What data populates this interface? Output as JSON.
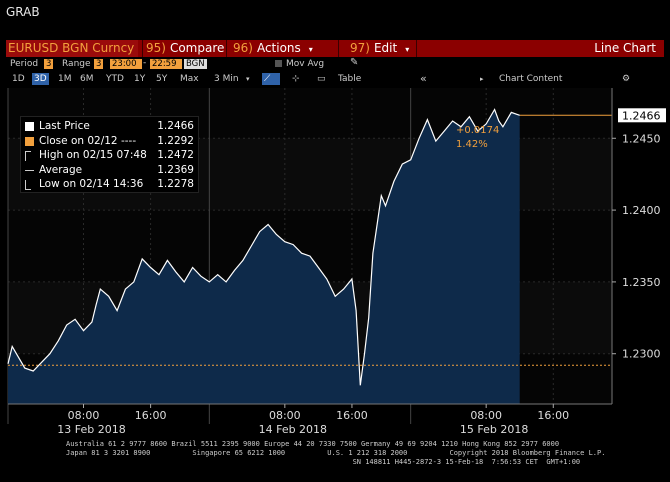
{
  "window_title": "GRAB",
  "toolbar": {
    "ticker": "EURUSD BGN Curncy",
    "compare": {
      "num": "95)",
      "label": "Compare"
    },
    "actions": {
      "num": "96)",
      "label": "Actions"
    },
    "edit": {
      "num": "97)",
      "label": "Edit"
    },
    "title": "Line Chart"
  },
  "params": {
    "period_label": "Period",
    "period_value": "3",
    "range_label": "Range",
    "range_value": "3",
    "start_time": "23:00",
    "end_time": "22:59",
    "source": "BGN",
    "mov_avg_label": "Mov Avg"
  },
  "tabs": [
    "1D",
    "3D",
    "1M",
    "6M",
    "YTD",
    "1Y",
    "5Y",
    "Max"
  ],
  "selected_tab": "3D",
  "interval": "3 Min",
  "table_label": "Table",
  "chart_content_label": "Chart Content",
  "legend": [
    {
      "label": "Last Price",
      "value": "1.2466",
      "mark": "white-square"
    },
    {
      "label": "Close on 02/12 ----",
      "value": "1.2292",
      "mark": "orange-square"
    },
    {
      "label": "High on 02/15 07:48",
      "value": "1.2472",
      "mark": "high-line"
    },
    {
      "label": "Average",
      "value": "1.2369",
      "mark": "average-line"
    },
    {
      "label": "Low on 02/14 14:36",
      "value": "1.2278",
      "mark": "low-line"
    }
  ],
  "annotation": {
    "change": "+0.0174",
    "pct": "1.42%"
  },
  "last_price_label": "1.2466",
  "footer_lines": [
    "Australia 61 2 9777 8600 Brazil 5511 2395 9000 Europe 44 20 7330 7500 Germany 49 69 9204 1210 Hong Kong 852 2977 6000",
    "Japan 81 3 3201 8900          Singapore 65 6212 1000          U.S. 1 212 318 2000          Copyright 2018 Bloomberg Finance L.P.",
    "                                                                    SN 148811 H445-2872-3 15-Feb-18  7:56:53 CET  GMT+1:00"
  ],
  "colors": {
    "accent": "#f2a03d",
    "toolbar": "#8b0000",
    "area": "#0e2a4a",
    "tab_selected": "#2f62a8"
  },
  "chart_data": {
    "type": "area",
    "y_ticks": [
      1.23,
      1.235,
      1.24,
      1.245
    ],
    "y_tick_labels": [
      "1.2300",
      "1.2350",
      "1.2400",
      "1.2450"
    ],
    "ylim": [
      1.2265,
      1.2485
    ],
    "x_ticks": [
      {
        "t": 9,
        "label": "08:00"
      },
      {
        "t": 17,
        "label": "16:00"
      },
      {
        "t": 33,
        "label": "08:00"
      },
      {
        "t": 41,
        "label": "16:00"
      },
      {
        "t": 57,
        "label": "08:00"
      },
      {
        "t": 65,
        "label": "16:00"
      }
    ],
    "day_labels": [
      {
        "t": 9,
        "label": "13 Feb 2018"
      },
      {
        "t": 33,
        "label": "14 Feb 2018"
      },
      {
        "t": 57,
        "label": "15 Feb 2018"
      }
    ],
    "day_separators": [
      0,
      24,
      48
    ],
    "xlim": [
      0,
      72
    ],
    "close_reference": 1.2292,
    "last_price": 1.2466,
    "series": [
      {
        "values": [
          [
            0,
            1.2293
          ],
          [
            0.5,
            1.2305
          ],
          [
            1,
            1.23
          ],
          [
            2,
            1.229
          ],
          [
            3,
            1.2288
          ],
          [
            4,
            1.2294
          ],
          [
            5,
            1.23
          ],
          [
            6,
            1.2309
          ],
          [
            7,
            1.232
          ],
          [
            8,
            1.2324
          ],
          [
            9,
            1.2316
          ],
          [
            10,
            1.2322
          ],
          [
            10.5,
            1.2334
          ],
          [
            11,
            1.2345
          ],
          [
            12,
            1.234
          ],
          [
            13,
            1.233
          ],
          [
            14,
            1.2345
          ],
          [
            15,
            1.235
          ],
          [
            16,
            1.2366
          ],
          [
            17,
            1.236
          ],
          [
            18,
            1.2355
          ],
          [
            19,
            1.2365
          ],
          [
            20,
            1.2357
          ],
          [
            21,
            1.235
          ],
          [
            22,
            1.236
          ],
          [
            23,
            1.2354
          ],
          [
            24,
            1.235
          ],
          [
            25,
            1.2355
          ],
          [
            26,
            1.235
          ],
          [
            27,
            1.2358
          ],
          [
            28,
            1.2365
          ],
          [
            29,
            1.2375
          ],
          [
            30,
            1.2385
          ],
          [
            31,
            1.239
          ],
          [
            32,
            1.2383
          ],
          [
            33,
            1.2378
          ],
          [
            34,
            1.2376
          ],
          [
            35,
            1.237
          ],
          [
            36,
            1.2368
          ],
          [
            37,
            1.236
          ],
          [
            38,
            1.2352
          ],
          [
            39,
            1.234
          ],
          [
            40,
            1.2345
          ],
          [
            41,
            1.2352
          ],
          [
            41.5,
            1.233
          ],
          [
            42,
            1.2278
          ],
          [
            42.5,
            1.23
          ],
          [
            43,
            1.2325
          ],
          [
            43.5,
            1.237
          ],
          [
            44,
            1.239
          ],
          [
            44.5,
            1.241
          ],
          [
            45,
            1.2403
          ],
          [
            46,
            1.242
          ],
          [
            47,
            1.2432
          ],
          [
            48,
            1.2435
          ],
          [
            49,
            1.245
          ],
          [
            50,
            1.2463
          ],
          [
            51,
            1.2448
          ],
          [
            52,
            1.2455
          ],
          [
            53,
            1.2462
          ],
          [
            54,
            1.2458
          ],
          [
            55,
            1.2465
          ],
          [
            56,
            1.2455
          ],
          [
            57,
            1.246
          ],
          [
            58,
            1.247
          ],
          [
            58.5,
            1.2462
          ],
          [
            59,
            1.2458
          ],
          [
            60,
            1.2468
          ],
          [
            61,
            1.2466
          ]
        ]
      }
    ]
  }
}
